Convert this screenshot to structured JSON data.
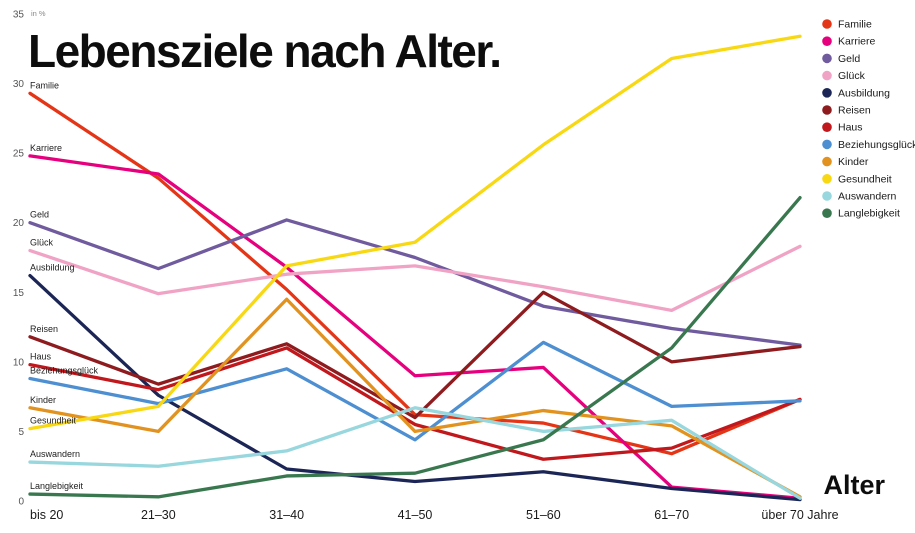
{
  "title": "Lebensziele nach Alter.",
  "x_axis_title": "Alter",
  "y_axis_unit": "in %",
  "chart_data": {
    "type": "line",
    "title": "Lebensziele nach Alter.",
    "xlabel": "Alter",
    "ylabel": "in %",
    "ylim": [
      0,
      35
    ],
    "yticks": [
      0,
      5,
      10,
      15,
      20,
      25,
      30,
      35
    ],
    "grid": false,
    "legend_position": "top-right",
    "categories": [
      "bis 20",
      "21–30",
      "31–40",
      "41–50",
      "51–60",
      "61–70",
      "über 70 Jahre"
    ],
    "series": [
      {
        "name": "Familie",
        "color": "#e53517",
        "values": [
          29.3,
          23.2,
          15.2,
          6.2,
          5.6,
          3.4,
          7.3
        ]
      },
      {
        "name": "Karriere",
        "color": "#e6007e",
        "values": [
          24.8,
          23.5,
          16.8,
          9.0,
          9.6,
          1.0,
          0.2
        ]
      },
      {
        "name": "Geld",
        "color": "#6f5b9e",
        "values": [
          20.0,
          16.7,
          20.2,
          17.5,
          14.0,
          12.4,
          11.2
        ]
      },
      {
        "name": "Glück",
        "color": "#f0a3c5",
        "values": [
          18.0,
          14.9,
          16.3,
          16.9,
          15.4,
          13.7,
          18.3
        ]
      },
      {
        "name": "Ausbildung",
        "color": "#1c2656",
        "values": [
          16.2,
          7.6,
          2.3,
          1.4,
          2.1,
          0.9,
          0.1
        ]
      },
      {
        "name": "Reisen",
        "color": "#8e1b1e",
        "values": [
          11.8,
          8.4,
          11.3,
          6.0,
          15.0,
          10.0,
          11.1
        ]
      },
      {
        "name": "Haus",
        "color": "#c0181c",
        "values": [
          9.8,
          8.0,
          11.0,
          5.5,
          3.0,
          3.8,
          7.3
        ]
      },
      {
        "name": "Beziehungsglück",
        "color": "#4d8fd1",
        "values": [
          8.8,
          7.0,
          9.5,
          4.4,
          11.4,
          6.8,
          7.2
        ]
      },
      {
        "name": "Kinder",
        "color": "#e2931f",
        "values": [
          6.7,
          5.0,
          14.5,
          5.0,
          6.5,
          5.4,
          0.3
        ]
      },
      {
        "name": "Gesundheit",
        "color": "#f8d812",
        "values": [
          5.2,
          6.8,
          16.9,
          18.6,
          25.6,
          31.8,
          33.4
        ]
      },
      {
        "name": "Auswandern",
        "color": "#97d7dd",
        "values": [
          2.8,
          2.5,
          3.6,
          6.7,
          5.0,
          5.8,
          0.2
        ]
      },
      {
        "name": "Langlebigkeit",
        "color": "#39784f",
        "values": [
          0.5,
          0.3,
          1.8,
          2.0,
          4.4,
          11.0,
          21.8
        ]
      }
    ]
  }
}
